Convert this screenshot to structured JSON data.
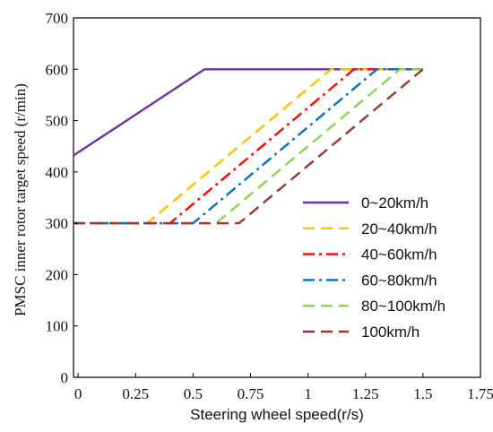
{
  "chart_data": {
    "type": "line",
    "xlabel": "Steering wheel speed(r/s)",
    "ylabel": "PMSC inner rotor target speed (r/min)",
    "xlim": [
      -0.02,
      1.75
    ],
    "ylim": [
      0,
      700
    ],
    "xticks": [
      "0",
      "0.25",
      "0.5",
      "0.75",
      "1",
      "1.25",
      "1.5",
      "1.75"
    ],
    "xtick_values": [
      0,
      0.25,
      0.5,
      0.75,
      1,
      1.25,
      1.5,
      1.75
    ],
    "yticks": [
      "0",
      "100",
      "200",
      "300",
      "400",
      "500",
      "600",
      "700"
    ],
    "ytick_values": [
      0,
      100,
      200,
      300,
      400,
      500,
      600,
      700
    ],
    "legend_position": "right",
    "series": [
      {
        "name": "0~20km/h",
        "color": "#7030a0",
        "dash": "solid",
        "x": [
          -0.02,
          0.55,
          1.5
        ],
        "y": [
          432,
          600,
          600
        ]
      },
      {
        "name": "20~40km/h",
        "color": "#ffc000",
        "dash": "dash",
        "x": [
          -0.02,
          0.3,
          1.1,
          1.5
        ],
        "y": [
          300,
          300,
          600,
          600
        ]
      },
      {
        "name": "40~60km/h",
        "color": "#ff0000",
        "dash": "dashdot",
        "x": [
          -0.02,
          0.4,
          1.2,
          1.5
        ],
        "y": [
          300,
          300,
          600,
          600
        ]
      },
      {
        "name": "60~80km/h",
        "color": "#0070c0",
        "dash": "dashdot",
        "x": [
          -0.02,
          0.5,
          1.3,
          1.5
        ],
        "y": [
          300,
          300,
          600,
          600
        ]
      },
      {
        "name": "80~100km/h",
        "color": "#92d050",
        "dash": "dash",
        "x": [
          -0.02,
          0.6,
          1.4,
          1.5
        ],
        "y": [
          300,
          300,
          600,
          600
        ]
      },
      {
        "name": "100km/h",
        "color": "#953735",
        "dash": "dash",
        "x": [
          -0.02,
          0.7,
          1.5
        ],
        "y": [
          300,
          300,
          600
        ]
      }
    ]
  }
}
